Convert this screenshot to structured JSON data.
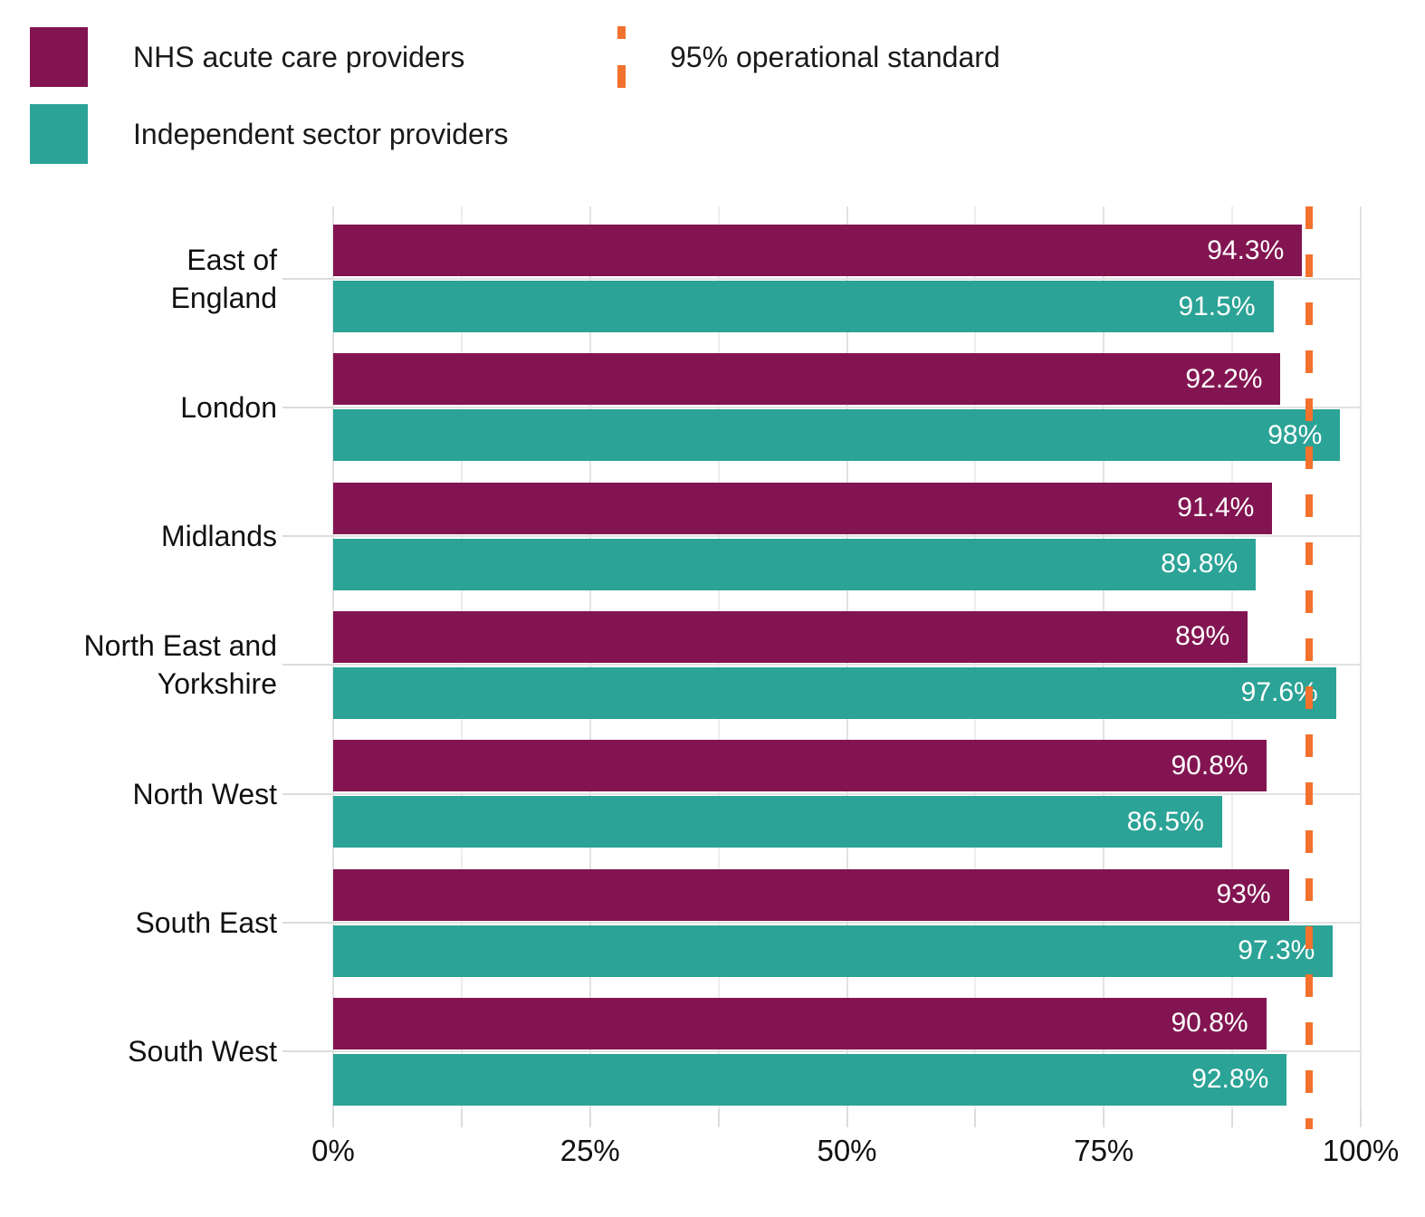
{
  "legend": {
    "items": [
      {
        "label": "NHS acute care providers",
        "color": "#821551",
        "swatch": "square"
      },
      {
        "label": "Independent sector providers",
        "color": "#2BA396",
        "swatch": "square"
      }
    ],
    "standard": {
      "label": "95% operational standard",
      "color": "#F2712D",
      "swatch": "dashed-vertical-line"
    }
  },
  "chart_data": {
    "type": "bar",
    "orientation": "horizontal",
    "title": "",
    "xlabel": "",
    "ylabel": "",
    "xlim": [
      0,
      100
    ],
    "grid": true,
    "legend_position": "top",
    "x_ticks": [
      {
        "value": 0,
        "label": "0%"
      },
      {
        "value": 25,
        "label": "25%"
      },
      {
        "value": 50,
        "label": "50%"
      },
      {
        "value": 75,
        "label": "75%"
      },
      {
        "value": 100,
        "label": "100%"
      }
    ],
    "minor_tick_step": 12.5,
    "categories": [
      "East of England",
      "London",
      "Midlands",
      "North East and Yorkshire",
      "North West",
      "South East",
      "South West"
    ],
    "categories_display": [
      "East of\nEngland",
      "London",
      "Midlands",
      "North East and\nYorkshire",
      "North West",
      "South East",
      "South West"
    ],
    "series": [
      {
        "name": "NHS acute care providers",
        "color": "#821551",
        "values": [
          94.3,
          92.2,
          91.4,
          89,
          90.8,
          93,
          90.8
        ],
        "value_labels": [
          "94.3%",
          "92.2%",
          "91.4%",
          "89%",
          "90.8%",
          "93%",
          "90.8%"
        ]
      },
      {
        "name": "Independent sector providers",
        "color": "#2BA396",
        "values": [
          91.5,
          98,
          89.8,
          97.6,
          86.5,
          97.3,
          92.8
        ],
        "value_labels": [
          "91.5%",
          "98%",
          "89.8%",
          "97.6%",
          "86.5%",
          "97.3%",
          "92.8%"
        ]
      }
    ],
    "reference_line": {
      "value": 95,
      "label": "95% operational standard",
      "color": "#F2712D",
      "style": "dashed"
    }
  },
  "colors": {
    "grid_major": "#E2E2E2",
    "grid_minor": "#EDEDED",
    "tick": "#DCDCDC",
    "axis_text": "#111111",
    "bar_label_text": "#FFFFFF",
    "background": "#FFFFFF"
  }
}
